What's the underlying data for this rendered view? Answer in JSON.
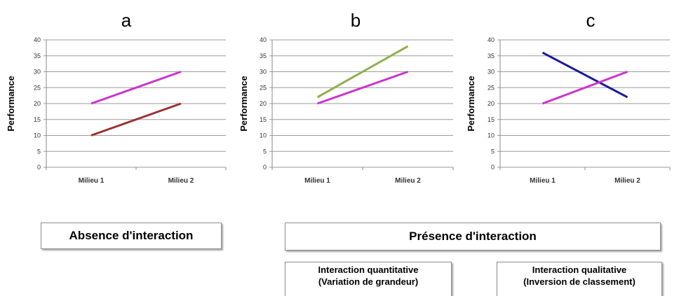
{
  "chart_data": [
    {
      "type": "line",
      "title": "a",
      "categories": [
        "Milieu 1",
        "Milieu 2"
      ],
      "ylabel": "Performance",
      "ylim": [
        0,
        40
      ],
      "yticks": [
        "0",
        "5",
        "10",
        "15",
        "20",
        "25",
        "30",
        "35",
        "40"
      ],
      "grid": true,
      "series": [
        {
          "values": [
            20,
            30
          ],
          "color": "#cc33cc"
        },
        {
          "values": [
            10,
            20
          ],
          "color": "#993333"
        }
      ]
    },
    {
      "type": "line",
      "title": "b",
      "categories": [
        "Milieu 1",
        "Milieu 2"
      ],
      "ylabel": "Performance",
      "ylim": [
        0,
        40
      ],
      "yticks": [
        "0",
        "5",
        "10",
        "15",
        "20",
        "25",
        "30",
        "35",
        "40"
      ],
      "grid": true,
      "series": [
        {
          "values": [
            22,
            38
          ],
          "color": "#8fb04f"
        },
        {
          "values": [
            20,
            30
          ],
          "color": "#cc33cc"
        }
      ]
    },
    {
      "type": "line",
      "title": "c",
      "categories": [
        "Milieu 1",
        "Milieu 2"
      ],
      "ylabel": "Performance",
      "ylim": [
        0,
        40
      ],
      "yticks": [
        "0",
        "5",
        "10",
        "15",
        "20",
        "25",
        "30",
        "35",
        "40"
      ],
      "grid": true,
      "series": [
        {
          "values": [
            36,
            22
          ],
          "color": "#1a1a99"
        },
        {
          "values": [
            20,
            30
          ],
          "color": "#cc33cc"
        }
      ]
    }
  ],
  "labels": {
    "absence": "Absence d'interaction",
    "presence": "Présence d'interaction",
    "quant_line1": "Interaction quantitative",
    "quant_line2": "(Variation de grandeur)",
    "qual_line1": "Interaction qualitative",
    "qual_line2": "(Inversion de classement)"
  }
}
